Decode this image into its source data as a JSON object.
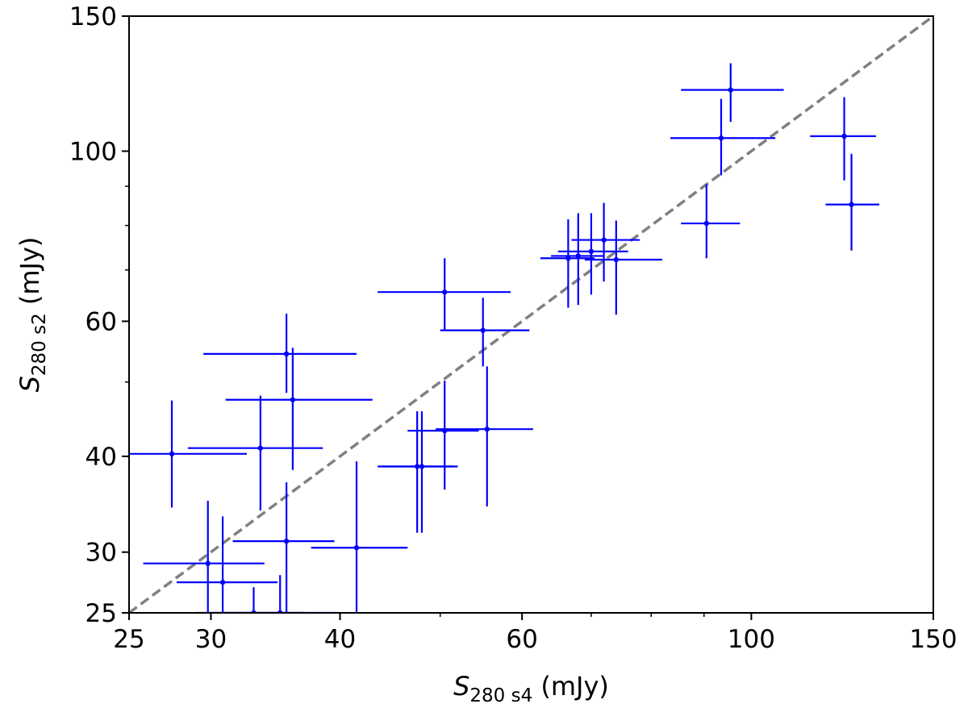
{
  "chart_data": {
    "type": "scatter",
    "xscale": "log",
    "yscale": "log",
    "xlim": [
      25,
      150
    ],
    "ylim": [
      25,
      150
    ],
    "xticks": [
      25,
      30,
      40,
      60,
      100,
      150
    ],
    "yticks": [
      25,
      30,
      40,
      60,
      100,
      150
    ],
    "xlabel": {
      "base": "S",
      "sub": "280 s4",
      "unit": " (mJy)"
    },
    "ylabel": {
      "base": "S",
      "sub": "280 s2",
      "unit": " (mJy)"
    },
    "grid": false,
    "marker_color": "#0000ff",
    "reference_line": {
      "style": "dashed",
      "color": "#808080",
      "from": [
        25,
        25
      ],
      "to": [
        150,
        150
      ]
    },
    "points": [
      {
        "x": 95.5,
        "y": 120.2,
        "xerr": [
          10,
          12
        ],
        "yerr": [
          11,
          10
        ]
      },
      {
        "x": 93.5,
        "y": 104.0,
        "xerr": [
          10,
          12
        ],
        "yerr": [
          11,
          13
        ]
      },
      {
        "x": 90.5,
        "y": 80.5,
        "xerr": [
          5,
          7
        ],
        "yerr": [
          8,
          10
        ]
      },
      {
        "x": 123.0,
        "y": 104.6,
        "xerr": [
          9,
          9
        ],
        "yerr": [
          13,
          13
        ]
      },
      {
        "x": 125.0,
        "y": 85.2,
        "xerr": [
          7,
          8
        ],
        "yerr": [
          11,
          14
        ]
      },
      {
        "x": 72.0,
        "y": 76.6,
        "xerr": [
          5,
          6
        ],
        "yerr": [
          9,
          9
        ]
      },
      {
        "x": 70.0,
        "y": 74.0,
        "xerr": [
          5,
          6
        ],
        "yerr": [
          9,
          9
        ]
      },
      {
        "x": 74.0,
        "y": 72.2,
        "xerr": [
          5,
          8
        ],
        "yerr": [
          11,
          9
        ]
      },
      {
        "x": 68.0,
        "y": 73.0,
        "xerr": [
          4,
          4
        ],
        "yerr": [
          10,
          10
        ]
      },
      {
        "x": 66.5,
        "y": 72.5,
        "xerr": [
          4,
          4
        ],
        "yerr": [
          10,
          9
        ]
      },
      {
        "x": 50.5,
        "y": 65.5,
        "xerr": [
          7,
          8
        ],
        "yerr": [
          7,
          7
        ]
      },
      {
        "x": 55.0,
        "y": 58.4,
        "xerr": [
          5,
          6
        ],
        "yerr": [
          6,
          6
        ]
      },
      {
        "x": 35.5,
        "y": 54.4,
        "xerr": [
          6,
          6
        ],
        "yerr": [
          6,
          7
        ]
      },
      {
        "x": 36.0,
        "y": 47.4,
        "xerr": [
          5,
          7
        ],
        "yerr": [
          9,
          8
        ]
      },
      {
        "x": 33.5,
        "y": 41.0,
        "xerr": [
          5,
          5
        ],
        "yerr": [
          7,
          7
        ]
      },
      {
        "x": 27.5,
        "y": 40.3,
        "xerr": [
          4,
          5
        ],
        "yerr": [
          6,
          7
        ]
      },
      {
        "x": 55.5,
        "y": 43.4,
        "xerr": [
          6,
          6
        ],
        "yerr": [
          9,
          9
        ]
      },
      {
        "x": 50.5,
        "y": 43.2,
        "xerr": [
          4,
          4
        ],
        "yerr": [
          7,
          7
        ]
      },
      {
        "x": 48.0,
        "y": 38.8,
        "xerr": [
          4,
          4
        ],
        "yerr": [
          7,
          7
        ]
      },
      {
        "x": 47.5,
        "y": 38.8,
        "xerr": [
          4,
          4
        ],
        "yerr": [
          7,
          7
        ]
      },
      {
        "x": 41.5,
        "y": 30.4,
        "xerr": [
          4,
          5
        ],
        "yerr": [
          9,
          9
        ]
      },
      {
        "x": 35.5,
        "y": 31.0,
        "xerr": [
          4,
          4
        ],
        "yerr": [
          6,
          6
        ]
      },
      {
        "x": 29.8,
        "y": 29.0,
        "xerr": [
          4,
          4
        ],
        "yerr": [
          6,
          6
        ]
      },
      {
        "x": 30.8,
        "y": 27.4,
        "xerr": [
          3,
          4
        ],
        "yerr": [
          6,
          6
        ]
      },
      {
        "x": 35.0,
        "y": 25.0,
        "xerr": [
          5,
          5
        ],
        "yerr": [
          0,
          3
        ]
      },
      {
        "x": 33.0,
        "y": 25.0,
        "xerr": [
          4,
          4
        ],
        "yerr": [
          0,
          2
        ]
      }
    ]
  }
}
